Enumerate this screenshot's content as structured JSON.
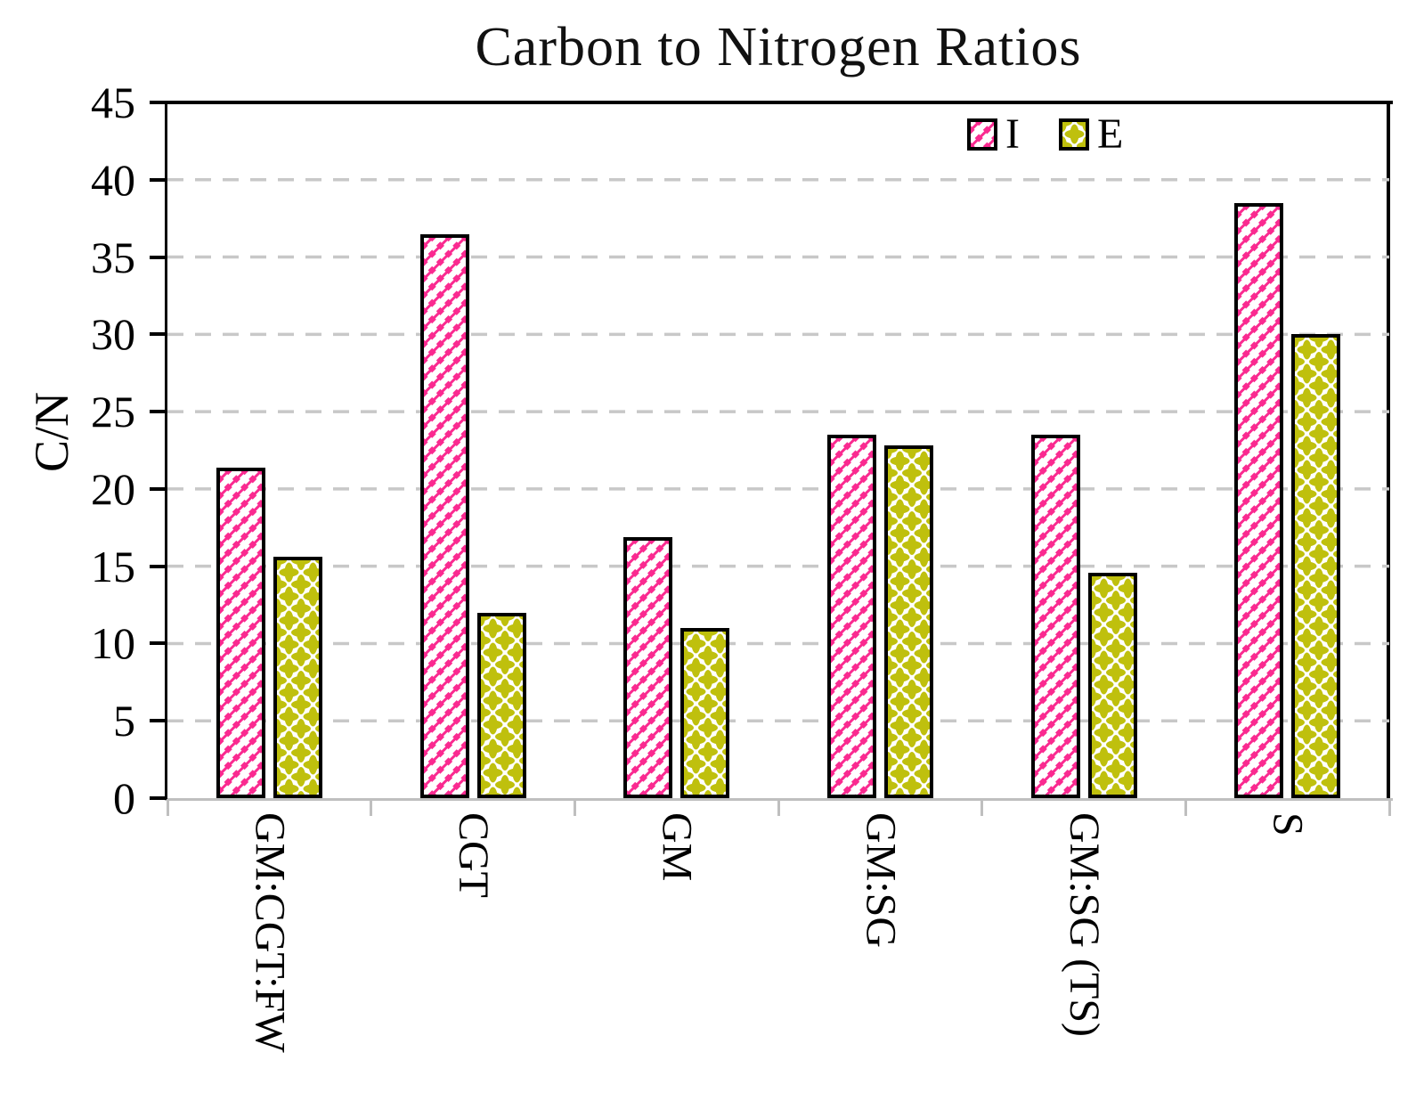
{
  "chart_data": {
    "type": "bar",
    "title": "Carbon to Nitrogen Ratios",
    "ylabel": "C/N",
    "xlabel": "",
    "ylim": [
      0,
      45
    ],
    "ytick_step": 5,
    "yticks": [
      45,
      40,
      35,
      30,
      25,
      20,
      15,
      10,
      5,
      0
    ],
    "grid": "horizontal dashed",
    "legend_position": "top-right-inside",
    "categories": [
      "GM:CGT:FW",
      "CGT",
      "GM",
      "GM:SG",
      "GM:SG (TS)",
      "S"
    ],
    "series": [
      {
        "name": "I",
        "pattern": "pink-diagonal-hatch",
        "color": "#fa2a90",
        "values": [
          21.4,
          36.5,
          16.9,
          23.5,
          23.5,
          38.5
        ]
      },
      {
        "name": "E",
        "pattern": "yellow-quatrefoil-dots",
        "color": "#bfc00d",
        "values": [
          15.6,
          12.0,
          11.0,
          22.8,
          14.6,
          30.0
        ]
      }
    ],
    "colors": {
      "series_I": "#fa2a90",
      "series_E": "#bfc00d",
      "frame": "#000000",
      "gridline": "#c8c8c8",
      "x_axis": "#bfbfbf",
      "text": "#000000"
    }
  }
}
